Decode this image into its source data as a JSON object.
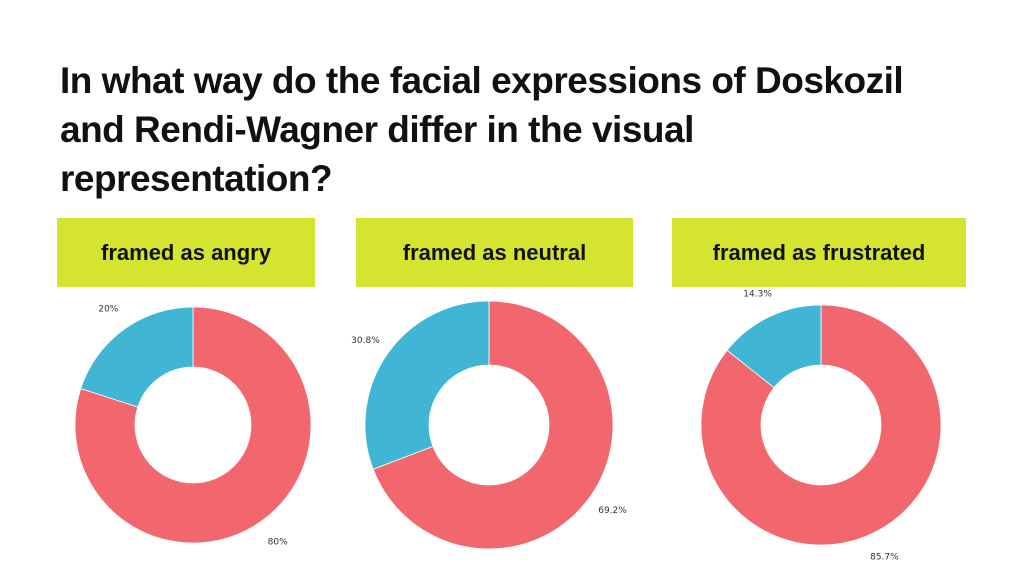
{
  "title": "In what way do the facial expressions of Doskozil and Rendi-Wagner differ in the visual representation?",
  "colors": {
    "primary": "#f2666d",
    "secondary": "#41b6d4",
    "header_bg": "#d4e42f"
  },
  "chart_data": [
    {
      "type": "pie",
      "title": "framed as angry",
      "values": [
        80,
        20
      ],
      "labels": [
        "80%",
        "20%"
      ]
    },
    {
      "type": "pie",
      "title": "framed as neutral",
      "values": [
        69.2,
        30.8
      ],
      "labels": [
        "69.2%",
        "30.8%"
      ]
    },
    {
      "type": "pie",
      "title": "framed as frustrated",
      "values": [
        85.7,
        14.3
      ],
      "labels": [
        "85.7%",
        "14.3%"
      ]
    }
  ]
}
